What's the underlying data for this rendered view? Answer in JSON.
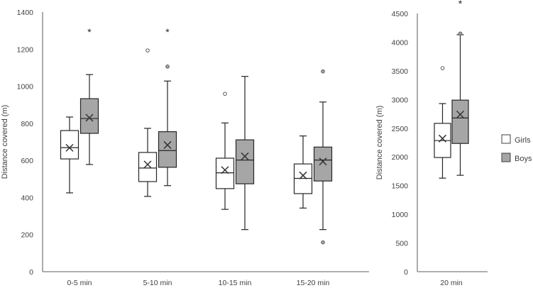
{
  "legend": {
    "items": [
      {
        "label": "Girls",
        "color": "#ffffff"
      },
      {
        "label": "Boys",
        "color": "#a6a6a6"
      }
    ]
  },
  "chart_data": [
    {
      "type": "box",
      "ylabel": "Distance covered (m)",
      "ylim": [
        0,
        1400
      ],
      "yticks": [
        "0",
        "200",
        "400",
        "600",
        "800",
        "1000",
        "1200",
        "1400"
      ],
      "categories": [
        "0-5 min",
        "5-10 min",
        "10-15 min",
        "15-20 min"
      ],
      "series": [
        {
          "name": "Girls",
          "color": "#ffffff",
          "boxes": [
            {
              "min": 425,
              "q1": 608,
              "median": 669,
              "q3": 761,
              "max": 834,
              "mean": 668,
              "outliers": [],
              "extremes": []
            },
            {
              "min": 406,
              "q1": 486,
              "median": 559,
              "q3": 643,
              "max": 773,
              "mean": 578,
              "outliers": [
                1193
              ],
              "extremes": []
            },
            {
              "min": 336,
              "q1": 448,
              "median": 533,
              "q3": 612,
              "max": 802,
              "mean": 548,
              "outliers": [
                959
              ],
              "extremes": []
            },
            {
              "min": 343,
              "q1": 421,
              "median": 503,
              "q3": 581,
              "max": 732,
              "mean": 519,
              "outliers": [],
              "extremes": []
            }
          ]
        },
        {
          "name": "Boys",
          "color": "#a6a6a6",
          "boxes": [
            {
              "min": 578,
              "q1": 746,
              "median": 826,
              "q3": 933,
              "max": 1063,
              "mean": 830,
              "outliers": [],
              "extremes": [
                1300
              ]
            },
            {
              "min": 464,
              "q1": 563,
              "median": 653,
              "q3": 755,
              "max": 1028,
              "mean": 683,
              "outliers": [
                1106
              ],
              "extremes": [
                1300
              ]
            },
            {
              "min": 227,
              "q1": 474,
              "median": 602,
              "q3": 711,
              "max": 1053,
              "mean": 622,
              "outliers": [],
              "extremes": []
            },
            {
              "min": 227,
              "q1": 489,
              "median": 602,
              "q3": 672,
              "max": 915,
              "mean": 594,
              "outliers": [
                1080,
                158
              ],
              "extremes": []
            }
          ]
        }
      ]
    },
    {
      "type": "box",
      "ylabel": "Distance covered (m)",
      "ylim": [
        0,
        4500
      ],
      "yticks": [
        "0",
        "500",
        "1000",
        "1500",
        "2000",
        "2500",
        "3000",
        "3500",
        "4000",
        "4500"
      ],
      "categories": [
        "20 min"
      ],
      "series": [
        {
          "name": "Girls",
          "color": "#ffffff",
          "boxes": [
            {
              "min": 1630,
              "q1": 1990,
              "median": 2285,
              "q3": 2585,
              "max": 2930,
              "mean": 2320,
              "outliers": [
                3547
              ],
              "extremes": []
            }
          ]
        },
        {
          "name": "Boys",
          "color": "#a6a6a6",
          "boxes": [
            {
              "min": 1680,
              "q1": 2235,
              "median": 2680,
              "q3": 2990,
              "max": 4130,
              "mean": 2740,
              "outliers": [
                4150
              ],
              "extremes": [
                4695
              ]
            }
          ]
        }
      ]
    }
  ]
}
